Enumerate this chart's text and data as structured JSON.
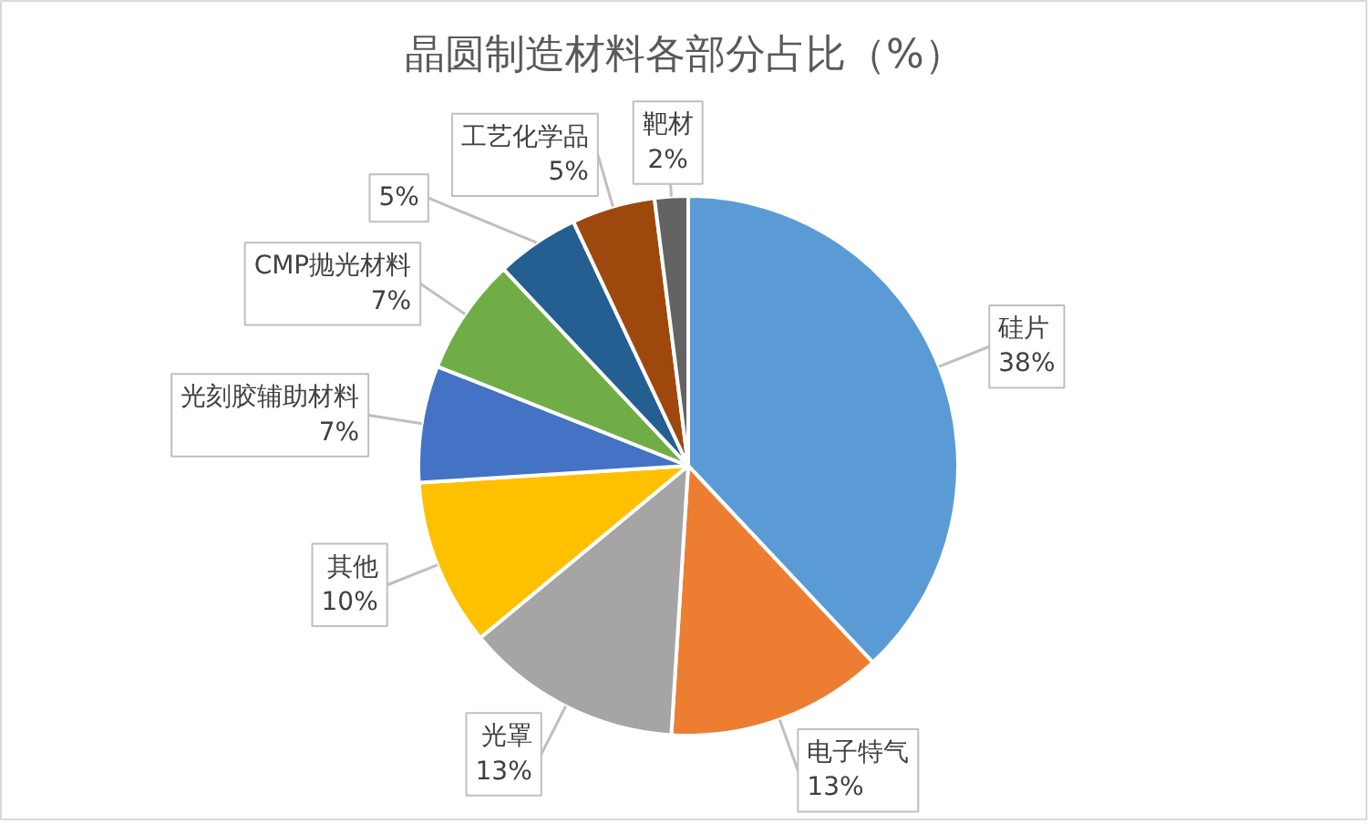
{
  "chart_data": {
    "type": "pie",
    "title": "晶圆制造材料各部分占比（%）",
    "categories": [
      "硅片",
      "电子特气",
      "光罩",
      "其他",
      "光刻胶辅助材料",
      "CMP抛光材料",
      null,
      "工艺化学品",
      "靶材"
    ],
    "values": [
      38,
      13,
      13,
      10,
      7,
      7,
      5,
      5,
      2
    ],
    "value_labels": [
      "38%",
      "13%",
      "13%",
      "10%",
      "7%",
      "7%",
      "5%",
      "5%",
      "2%"
    ],
    "colors": [
      "#5b9bd5",
      "#ed7d31",
      "#a5a5a5",
      "#ffc000",
      "#4472c4",
      "#70ad47",
      "#255e91",
      "#9e480e",
      "#636363"
    ]
  }
}
